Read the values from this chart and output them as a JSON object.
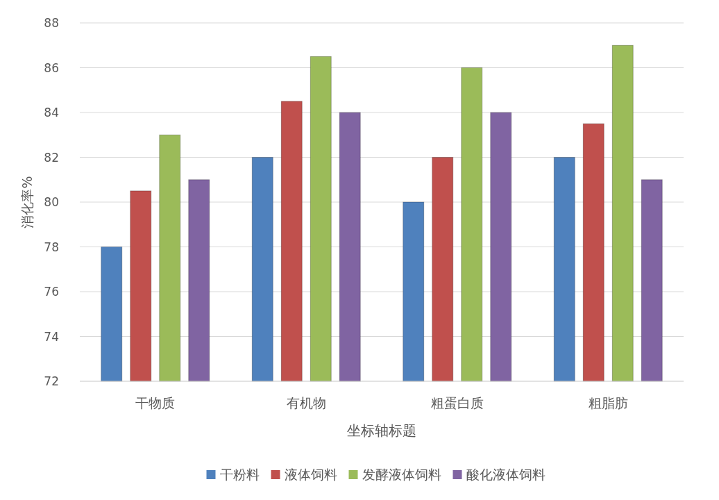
{
  "chart_data": {
    "type": "bar",
    "xlabel": "坐标轴标题",
    "ylabel": "消化率%",
    "categories": [
      "干物质",
      "有机物",
      "粗蛋白质",
      "粗脂肪"
    ],
    "series": [
      {
        "name": "干粉料",
        "color": "#4f81bd",
        "values": [
          78,
          82,
          80,
          82
        ]
      },
      {
        "name": "液体饲料",
        "color": "#c0504d",
        "values": [
          80.5,
          84.5,
          82,
          83.5
        ]
      },
      {
        "name": "发酵液体饲料",
        "color": "#9bbb59",
        "values": [
          83,
          86.5,
          86,
          87
        ]
      },
      {
        "name": "酸化液体饲料",
        "color": "#8064a2",
        "values": [
          81,
          84,
          84,
          81
        ]
      }
    ],
    "ylim": [
      72,
      88
    ],
    "yticks": [
      72,
      74,
      76,
      78,
      80,
      82,
      84,
      86,
      88
    ],
    "grid": "y",
    "legend": "bottom"
  }
}
